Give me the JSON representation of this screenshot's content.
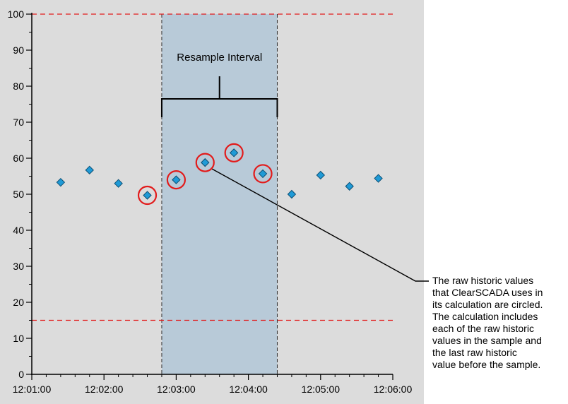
{
  "chart_data": {
    "type": "scatter",
    "title": "",
    "xlabel": "",
    "ylabel": "",
    "x_ticks": [
      "12:01:00",
      "12:02:00",
      "12:03:00",
      "12:04:00",
      "12:05:00",
      "12:06:00"
    ],
    "y_ticks": [
      0,
      10,
      20,
      30,
      40,
      50,
      60,
      70,
      80,
      90,
      100
    ],
    "xlim": [
      "12:01:00",
      "12:06:00"
    ],
    "ylim": [
      0,
      100
    ],
    "grid": false,
    "limit_lines": [
      100,
      15
    ],
    "resample_interval": {
      "start": "12:02:48",
      "end": "12:04:24",
      "label": "Resample Interval"
    },
    "series": [
      {
        "points": [
          {
            "x": "12:01:24",
            "y": 53.3,
            "circled": false
          },
          {
            "x": "12:01:48",
            "y": 56.7,
            "circled": false
          },
          {
            "x": "12:02:12",
            "y": 53.0,
            "circled": false
          },
          {
            "x": "12:02:36",
            "y": 49.7,
            "circled": true
          },
          {
            "x": "12:03:00",
            "y": 54.0,
            "circled": true
          },
          {
            "x": "12:03:24",
            "y": 58.8,
            "circled": true
          },
          {
            "x": "12:03:48",
            "y": 61.5,
            "circled": true
          },
          {
            "x": "12:04:12",
            "y": 55.7,
            "circled": true
          },
          {
            "x": "12:04:36",
            "y": 50.0,
            "circled": false
          },
          {
            "x": "12:05:00",
            "y": 55.3,
            "circled": false
          },
          {
            "x": "12:05:24",
            "y": 52.2,
            "circled": false
          },
          {
            "x": "12:05:48",
            "y": 54.4,
            "circled": false
          }
        ]
      }
    ],
    "callout": {
      "target_x": "12:03:24",
      "lines": [
        "The raw historic values",
        "that ClearSCADA uses in",
        "its calculation are circled.",
        "The calculation includes",
        "each of the raw historic",
        "values in the sample and",
        "the last raw historic",
        "value before the sample."
      ]
    },
    "colors": {
      "plot_bg": "#dcdcdc",
      "interval_fill": "#b8cad8",
      "point_fill": "#1f9ad6",
      "circle": "#e21b1b",
      "limit_line": "#e21b1b"
    }
  }
}
